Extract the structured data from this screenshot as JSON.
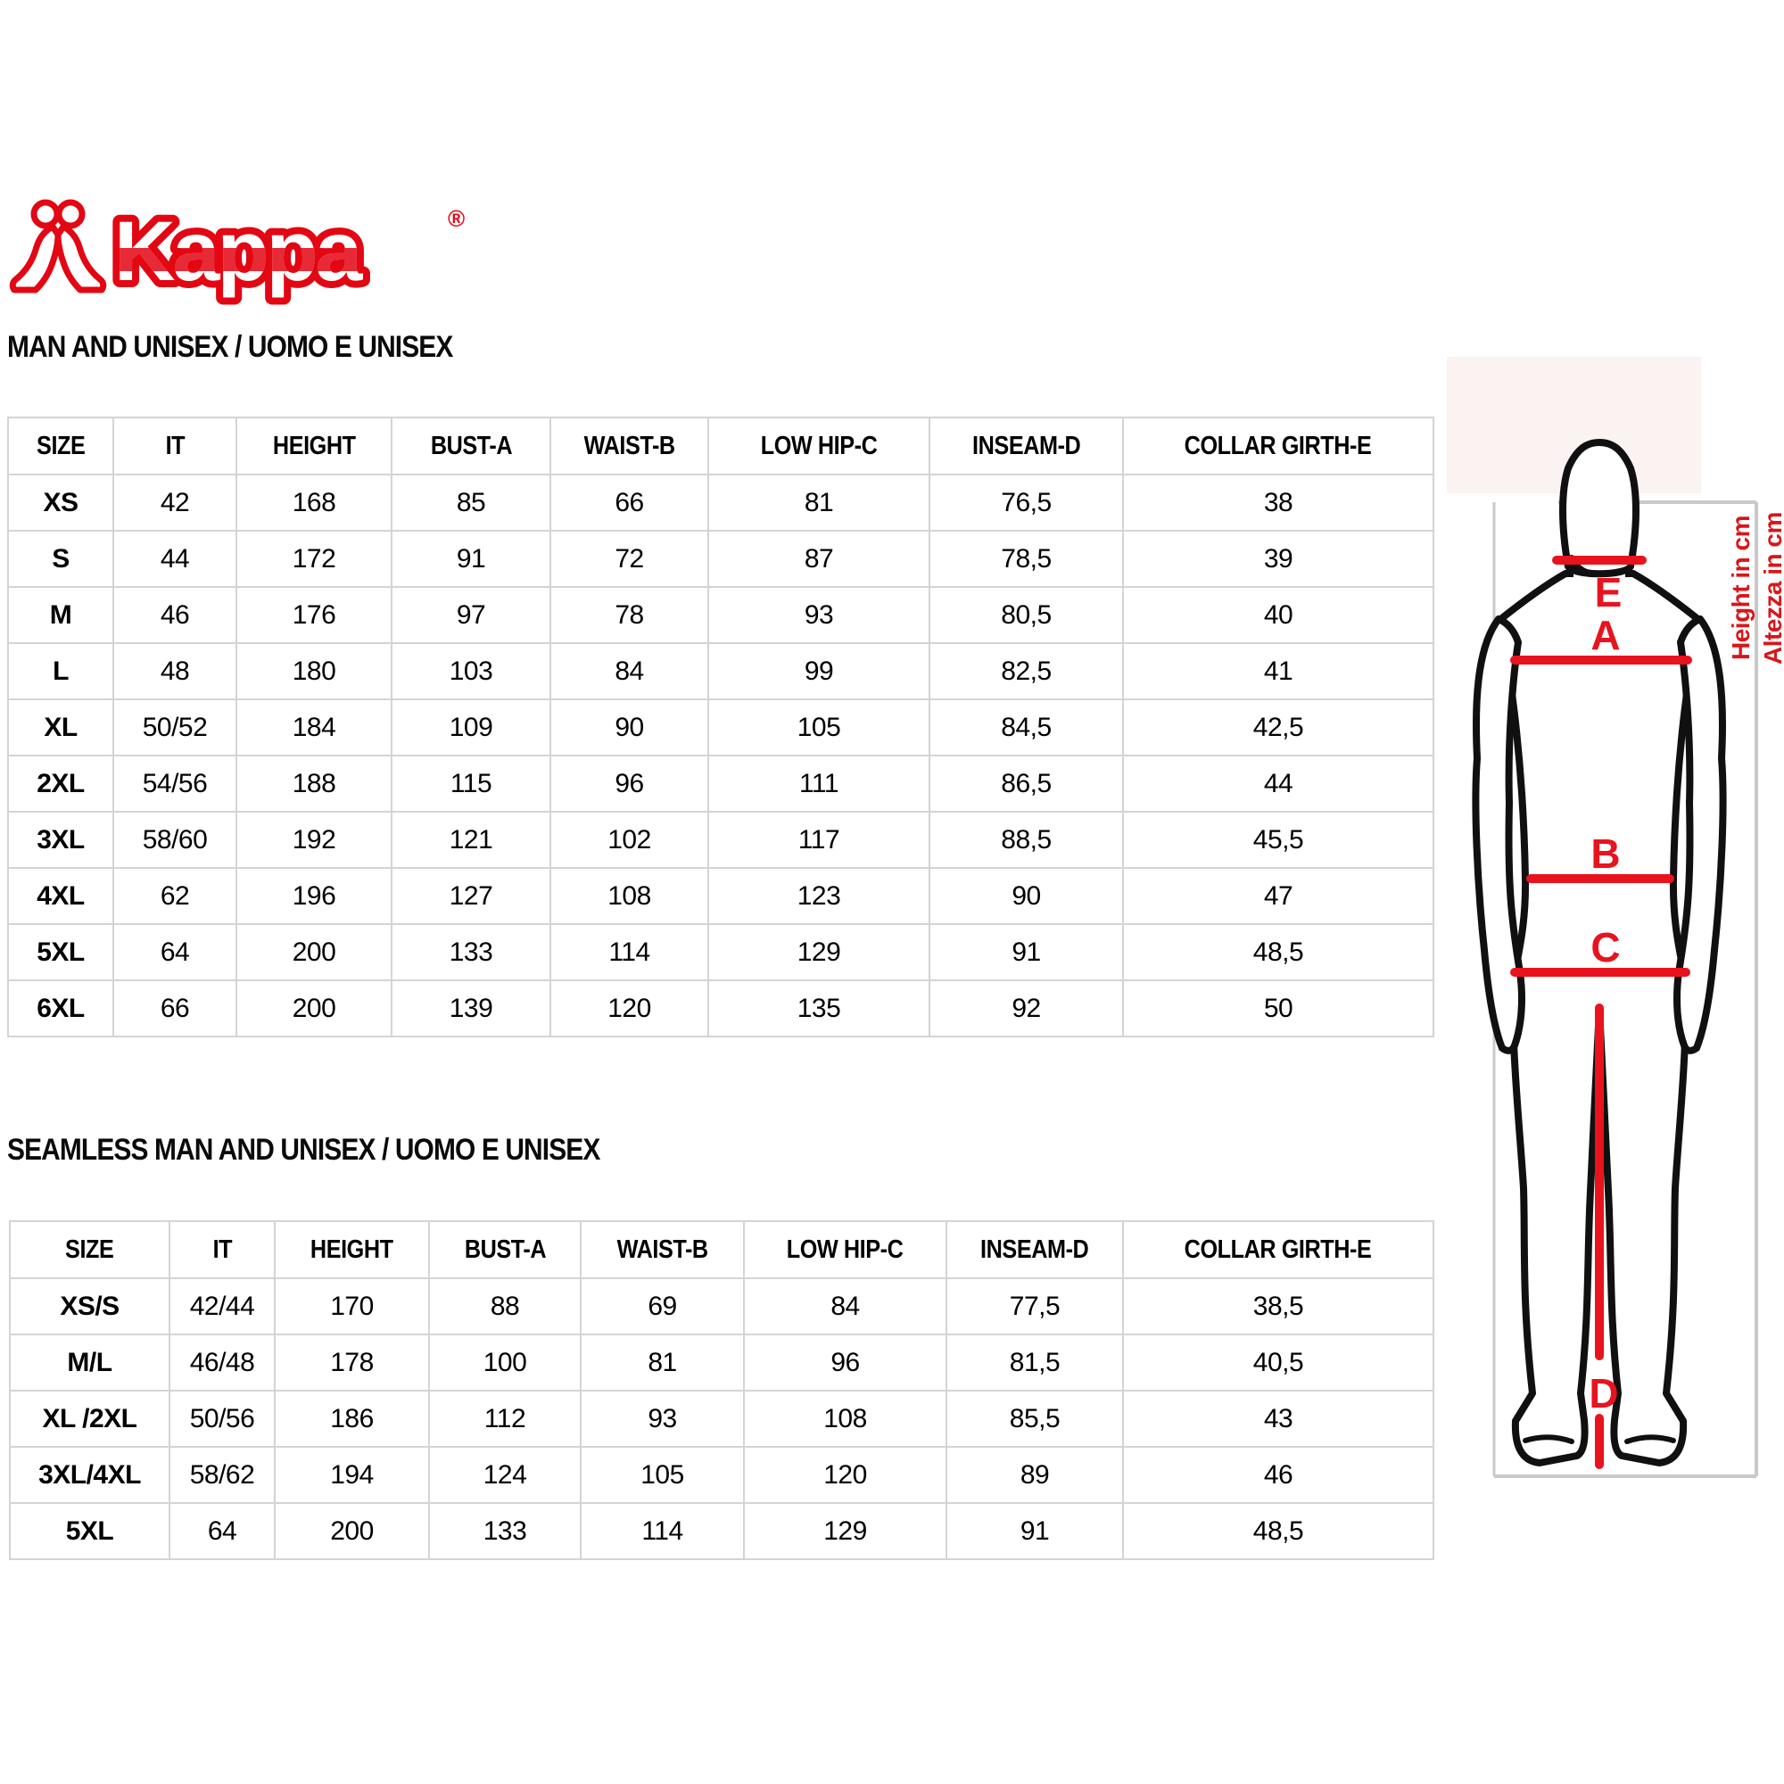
{
  "logo": {
    "brand": "Kappa",
    "registered": "®"
  },
  "section1": {
    "title": "MAN AND UNISEX / UOMO E UNISEX",
    "headers": [
      "SIZE",
      "IT",
      "HEIGHT",
      "BUST-A",
      "WAIST-B",
      "LOW HIP-C",
      "INSEAM-D",
      "COLLAR GIRTH-E"
    ],
    "rows": [
      [
        "XS",
        "42",
        "168",
        "85",
        "66",
        "81",
        "76,5",
        "38"
      ],
      [
        "S",
        "44",
        "172",
        "91",
        "72",
        "87",
        "78,5",
        "39"
      ],
      [
        "M",
        "46",
        "176",
        "97",
        "78",
        "93",
        "80,5",
        "40"
      ],
      [
        "L",
        "48",
        "180",
        "103",
        "84",
        "99",
        "82,5",
        "41"
      ],
      [
        "XL",
        "50/52",
        "184",
        "109",
        "90",
        "105",
        "84,5",
        "42,5"
      ],
      [
        "2XL",
        "54/56",
        "188",
        "115",
        "96",
        "111",
        "86,5",
        "44"
      ],
      [
        "3XL",
        "58/60",
        "192",
        "121",
        "102",
        "117",
        "88,5",
        "45,5"
      ],
      [
        "4XL",
        "62",
        "196",
        "127",
        "108",
        "123",
        "90",
        "47"
      ],
      [
        "5XL",
        "64",
        "200",
        "133",
        "114",
        "129",
        "91",
        "48,5"
      ],
      [
        "6XL",
        "66",
        "200",
        "139",
        "120",
        "135",
        "92",
        "50"
      ]
    ]
  },
  "section2": {
    "title": "SEAMLESS MAN AND UNISEX / UOMO E UNISEX",
    "headers": [
      "SIZE",
      "IT",
      "HEIGHT",
      "BUST-A",
      "WAIST-B",
      "LOW HIP-C",
      "INSEAM-D",
      "COLLAR GIRTH-E"
    ],
    "rows": [
      [
        "XS/S",
        "42/44",
        "170",
        "88",
        "69",
        "84",
        "77,5",
        "38,5"
      ],
      [
        "M/L",
        "46/48",
        "178",
        "100",
        "81",
        "96",
        "81,5",
        "40,5"
      ],
      [
        "XL /2XL",
        "50/56",
        "186",
        "112",
        "93",
        "108",
        "85,5",
        "43"
      ],
      [
        "3XL/4XL",
        "58/62",
        "194",
        "124",
        "105",
        "120",
        "89",
        "46"
      ],
      [
        "5XL",
        "64",
        "200",
        "133",
        "114",
        "129",
        "91",
        "48,5"
      ]
    ]
  },
  "diagram": {
    "labels": {
      "e": "E",
      "a": "A",
      "b": "B",
      "c": "C",
      "d": "D"
    },
    "height_note_en": "Height in cm",
    "height_note_it": "Altezza in cm"
  },
  "colors": {
    "accent_red": "#e30613",
    "line_red": "#e8131d",
    "frame_gray": "#c9c9c9",
    "grid_gray": "#d4d4d4"
  }
}
